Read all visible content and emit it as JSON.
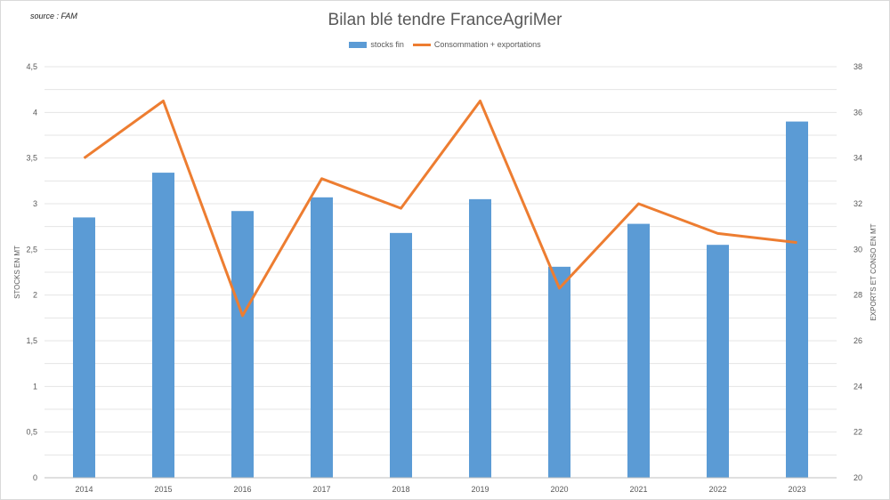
{
  "source_note": "source : FAM",
  "chart_data": {
    "type": "bar",
    "title": "Bilan blé tendre FranceAgriMer",
    "categories": [
      "2014",
      "2015",
      "2016",
      "2017",
      "2018",
      "2019",
      "2020",
      "2021",
      "2022",
      "2023"
    ],
    "series": [
      {
        "name": "stocks fin",
        "type": "bar",
        "axis": "left",
        "color": "#5b9bd5",
        "values": [
          2.85,
          3.34,
          2.92,
          3.07,
          2.68,
          3.05,
          2.31,
          2.78,
          2.55,
          3.9
        ]
      },
      {
        "name": "Consommation + exportations",
        "type": "line",
        "axis": "right",
        "color": "#ed7d31",
        "values": [
          34.0,
          36.5,
          27.1,
          33.1,
          31.8,
          36.5,
          28.3,
          32.0,
          30.7,
          30.3
        ]
      }
    ],
    "y_left": {
      "label": "STOCKS EN MT",
      "ylim": [
        0,
        4.5
      ],
      "ticks": [
        0,
        0.5,
        1,
        1.5,
        2,
        2.5,
        3,
        3.5,
        4,
        4.5
      ],
      "tick_labels": [
        "0",
        "0,5",
        "1",
        "1,5",
        "2",
        "2,5",
        "3",
        "3,5",
        "4",
        "4,5"
      ]
    },
    "y_right": {
      "label": "EXPORTS ET CONSO EN MT",
      "ylim": [
        20,
        38
      ],
      "ticks": [
        20,
        22,
        24,
        26,
        28,
        30,
        32,
        34,
        36,
        38
      ],
      "tick_labels": [
        "20",
        "22",
        "24",
        "26",
        "28",
        "30",
        "32",
        "34",
        "36",
        "38"
      ]
    },
    "grid": true,
    "legend_position": "top"
  }
}
